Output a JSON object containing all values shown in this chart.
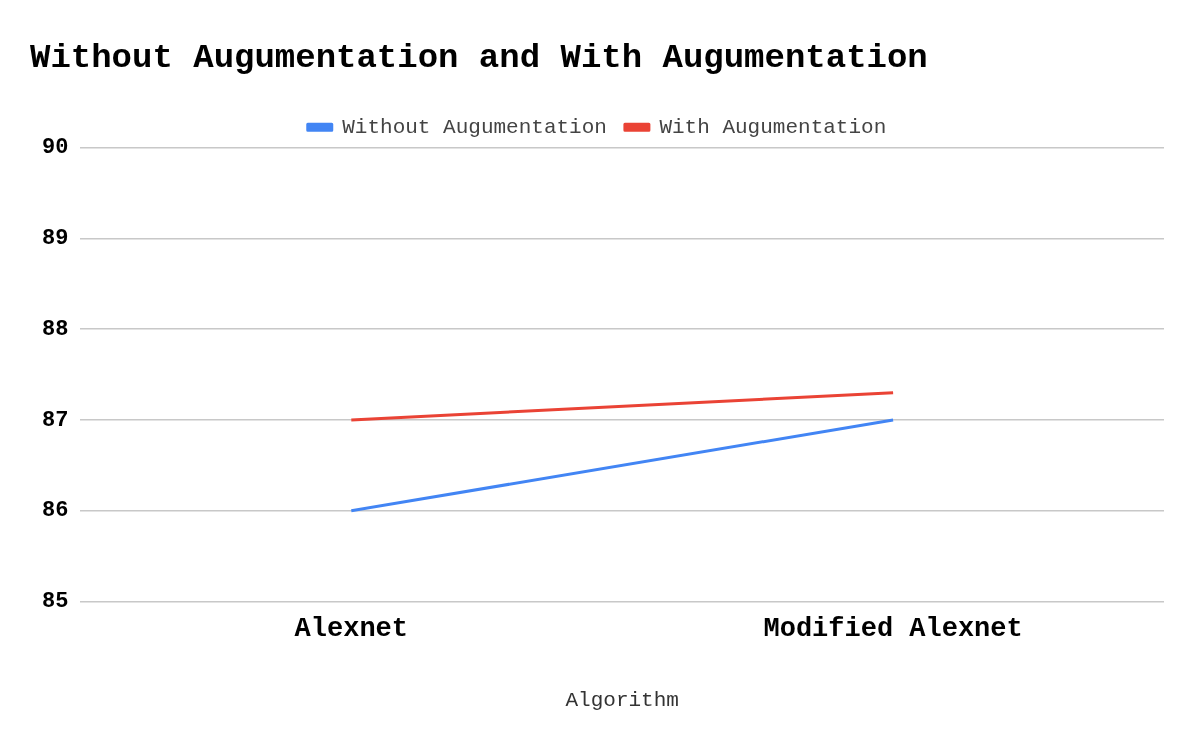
{
  "chart_data": {
    "type": "line",
    "title": "Without Augumentation and With Augumentation",
    "xlabel": "Algorithm",
    "categories": [
      "Alexnet",
      "Modified Alexnet"
    ],
    "series": [
      {
        "name": "Without Augumentation",
        "color": "#4285f4",
        "values": [
          86,
          87
        ]
      },
      {
        "name": "With Augumentation",
        "color": "#ea4335",
        "values": [
          87,
          87.3
        ]
      }
    ],
    "ylim": [
      85,
      90
    ],
    "yticks": [
      85,
      86,
      87,
      88,
      89,
      90
    ],
    "grid": "y",
    "legend": "top",
    "marker": "none",
    "line_style": "solid"
  }
}
